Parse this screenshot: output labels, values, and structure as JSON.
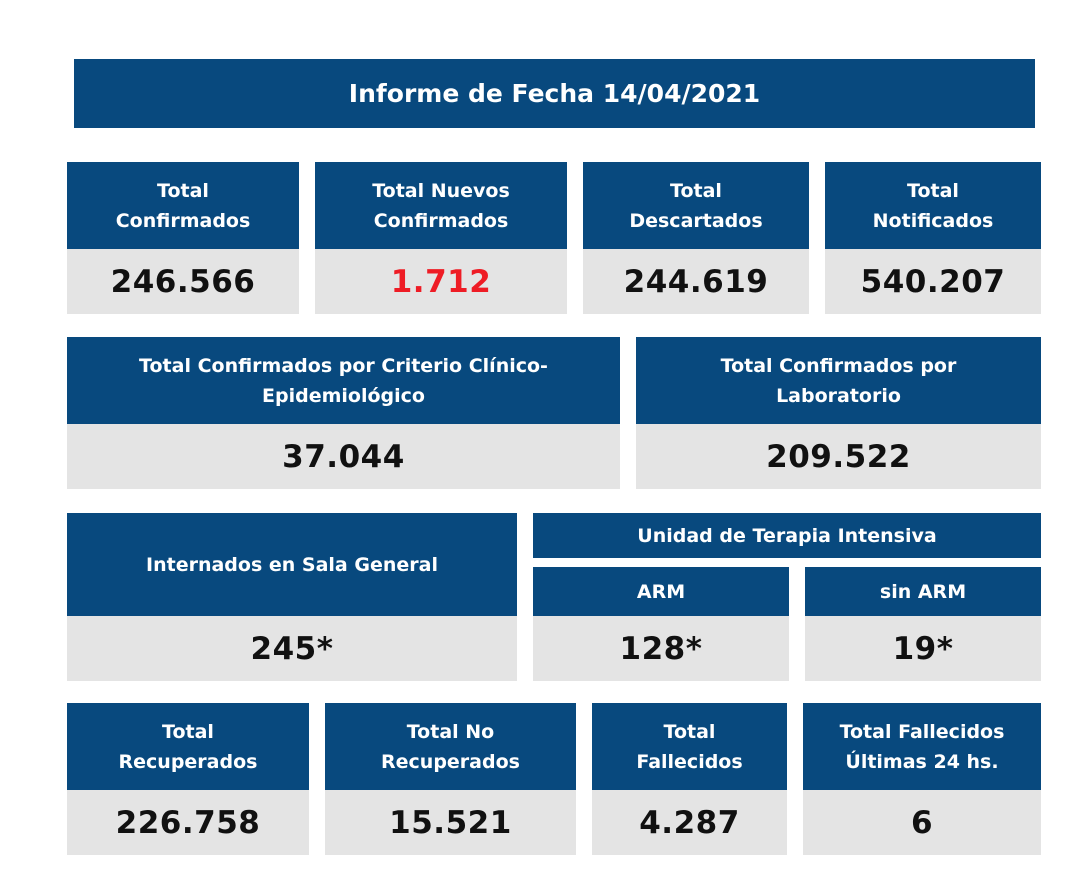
{
  "report": {
    "title": "Informe de Fecha 14/04/2021"
  },
  "row1": [
    {
      "label_l1": "Total",
      "label_l2": "Confirmados",
      "value": "246.566"
    },
    {
      "label_l1": "Total Nuevos",
      "label_l2": "Confirmados",
      "value": "1.712",
      "value_color": "#ee1c25"
    },
    {
      "label_l1": "Total",
      "label_l2": "Descartados",
      "value": "244.619"
    },
    {
      "label_l1": "Total",
      "label_l2": "Notificados",
      "value": "540.207"
    }
  ],
  "row2": [
    {
      "label_l1": "Total Confirmados por Criterio Clínico-",
      "label_l2": "Epidemiológico",
      "value": "37.044"
    },
    {
      "label_l1": "Total Confirmados por",
      "label_l2": "Laboratorio",
      "value": "209.522"
    }
  ],
  "row3": {
    "sala_general": {
      "label": "Internados en Sala General",
      "value": "245*"
    },
    "uti": {
      "label": "Unidad de Terapia Intensiva",
      "arm": {
        "label": "ARM",
        "value": "128*"
      },
      "sin_arm": {
        "label": "sin ARM",
        "value": "19*"
      }
    }
  },
  "row4": [
    {
      "label_l1": "Total",
      "label_l2": "Recuperados",
      "value": "226.758"
    },
    {
      "label_l1": "Total No",
      "label_l2": "Recuperados",
      "value": "15.521"
    },
    {
      "label_l1": "Total",
      "label_l2": "Fallecidos",
      "value": "4.287"
    },
    {
      "label_l1": "Total Fallecidos",
      "label_l2": "Últimas 24 hs.",
      "value": "6"
    }
  ],
  "colors": {
    "header_bg": "#08497e",
    "value_bg": "#e4e4e4",
    "highlight": "#ee1c25"
  }
}
